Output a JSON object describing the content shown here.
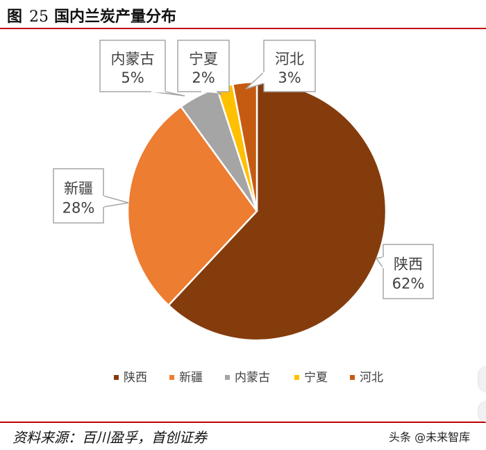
{
  "figure": {
    "label": "图",
    "number": "25",
    "title": "国内兰炭产量分布"
  },
  "source": "资料来源：百川盈孚，首创证券",
  "watermark": "头条 @未来智库",
  "chart_data": {
    "type": "pie",
    "title": "",
    "start_angle_deg": 0,
    "direction": "clockwise",
    "legend_position": "bottom",
    "slices": [
      {
        "name": "陕西",
        "value": 62,
        "label": "62%",
        "color": "#843C0C"
      },
      {
        "name": "新疆",
        "value": 28,
        "label": "28%",
        "color": "#ED7D31"
      },
      {
        "name": "内蒙古",
        "value": 5,
        "label": "5%",
        "color": "#A5A5A5"
      },
      {
        "name": "宁夏",
        "value": 2,
        "label": "2%",
        "color": "#FFC000"
      },
      {
        "name": "河北",
        "value": 3,
        "label": "3%",
        "color": "#C55A11"
      }
    ]
  }
}
